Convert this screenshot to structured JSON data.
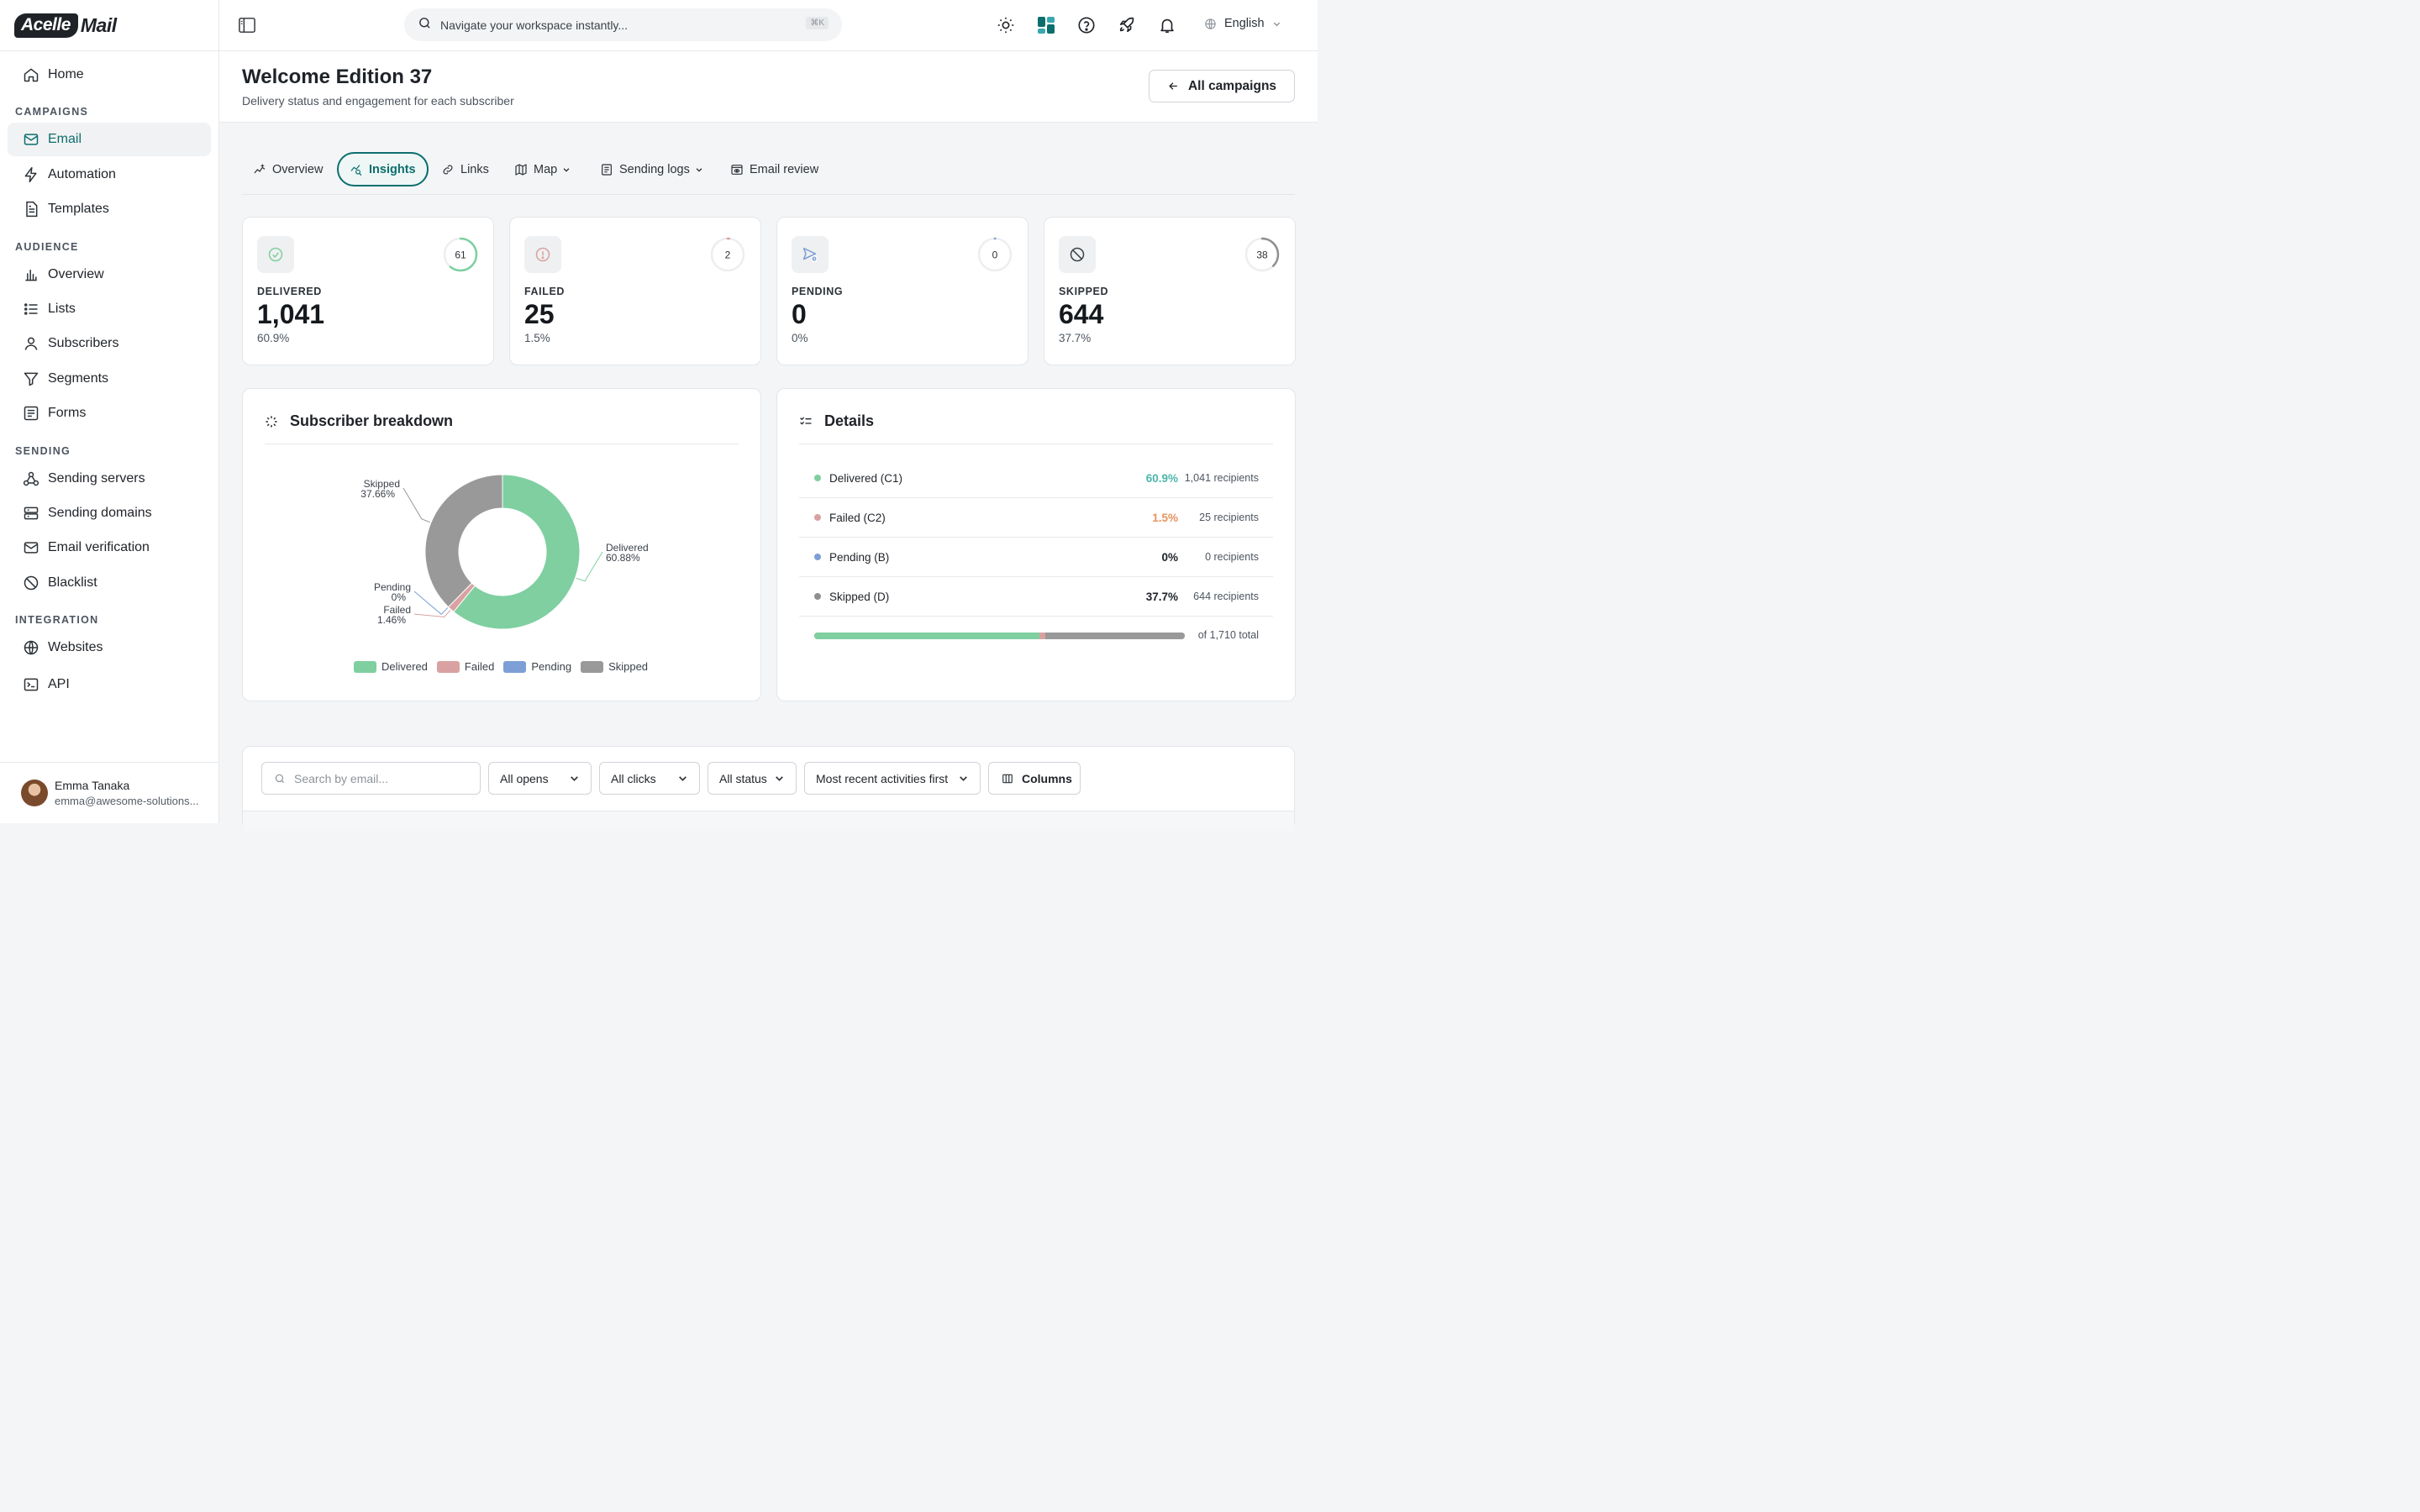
{
  "brand": {
    "logo_left": "Acelle",
    "logo_right": "Mail"
  },
  "sidebar": {
    "items": [
      {
        "label": "Home",
        "icon": "home-icon"
      },
      {
        "section": "CAMPAIGNS"
      },
      {
        "label": "Email",
        "icon": "mail-icon",
        "active": true
      },
      {
        "label": "Automation",
        "icon": "bolt-icon"
      },
      {
        "label": "Templates",
        "icon": "document-icon"
      },
      {
        "section": "AUDIENCE"
      },
      {
        "label": "Overview",
        "icon": "bar-chart-icon"
      },
      {
        "label": "Lists",
        "icon": "list-icon"
      },
      {
        "label": "Subscribers",
        "icon": "user-icon"
      },
      {
        "label": "Segments",
        "icon": "filter-icon"
      },
      {
        "label": "Forms",
        "icon": "form-icon"
      },
      {
        "section": "SENDING"
      },
      {
        "label": "Sending servers",
        "icon": "network-icon"
      },
      {
        "label": "Sending domains",
        "icon": "server-icon"
      },
      {
        "label": "Email verification",
        "icon": "mail-icon"
      },
      {
        "label": "Blacklist",
        "icon": "ban-icon"
      },
      {
        "section": "INTEGRATION"
      },
      {
        "label": "Websites",
        "icon": "globe-icon"
      },
      {
        "label": "API",
        "icon": "terminal-icon"
      }
    ],
    "user": {
      "name": "Emma Tanaka",
      "email": "emma@awesome-solutions..."
    }
  },
  "topbar": {
    "search_placeholder": "Navigate your workspace instantly...",
    "shortcut": "⌘K",
    "language": "English"
  },
  "header": {
    "title": "Welcome Edition 37",
    "subtitle": "Delivery status and engagement for each subscriber",
    "back_button": "All campaigns"
  },
  "tabs": [
    {
      "label": "Overview",
      "icon": "sparkline-icon"
    },
    {
      "label": "Insights",
      "icon": "insights-icon",
      "active": true
    },
    {
      "label": "Links",
      "icon": "link-icon"
    },
    {
      "label": "Map",
      "icon": "map-icon",
      "dropdown": true
    },
    {
      "label": "Sending logs",
      "icon": "log-icon",
      "dropdown": true
    },
    {
      "label": "Email review",
      "icon": "eye-icon"
    }
  ],
  "stats": [
    {
      "label": "DELIVERED",
      "value": "1,041",
      "pct": "60.9%",
      "ring": "61",
      "ring_fraction": 0.609,
      "color": "#7fcfa0",
      "icon": "check-circle-icon"
    },
    {
      "label": "FAILED",
      "value": "25",
      "pct": "1.5%",
      "ring": "2",
      "ring_fraction": 0.015,
      "color": "#d9a1a1",
      "icon": "alert-circle-icon"
    },
    {
      "label": "PENDING",
      "value": "0",
      "pct": "0%",
      "ring": "0",
      "ring_fraction": 0.0,
      "color": "#7d9fd6",
      "icon": "send-clock-icon"
    },
    {
      "label": "SKIPPED",
      "value": "644",
      "pct": "37.7%",
      "ring": "38",
      "ring_fraction": 0.377,
      "color": "#8f8f8f",
      "icon": "ban-icon"
    }
  ],
  "breakdown": {
    "title": "Subscriber breakdown"
  },
  "chart_data": {
    "type": "pie",
    "categories": [
      "Delivered",
      "Failed",
      "Pending",
      "Skipped"
    ],
    "values": [
      60.88,
      1.46,
      0,
      37.66
    ],
    "labels": [
      "60.88%",
      "1.46%",
      "0%",
      "37.66%"
    ],
    "colors": [
      "#7fcfa0",
      "#d9a1a1",
      "#7d9fd6",
      "#999999"
    ],
    "legend": "bottom"
  },
  "details": {
    "title": "Details",
    "rows": [
      {
        "name": "Delivered (C1)",
        "pct": "60.9%",
        "recipients": "1,041 recipients",
        "color": "#7fcfa0",
        "pct_color": "#4db6ac"
      },
      {
        "name": "Failed (C2)",
        "pct": "1.5%",
        "recipients": "25 recipients",
        "color": "#d9a1a1",
        "pct_color": "#e8935c"
      },
      {
        "name": "Pending (B)",
        "pct": "0%",
        "recipients": "0 recipients",
        "color": "#7d9fd6",
        "pct_color": "#1f2328"
      },
      {
        "name": "Skipped (D)",
        "pct": "37.7%",
        "recipients": "644 recipients",
        "color": "#8f8f8f",
        "pct_color": "#1f2328"
      }
    ],
    "total": "of 1,710 total"
  },
  "filters": {
    "search_placeholder": "Search by email...",
    "opens": "All opens",
    "clicks": "All clicks",
    "status": "All status",
    "sort": "Most recent activities first",
    "columns": "Columns"
  }
}
